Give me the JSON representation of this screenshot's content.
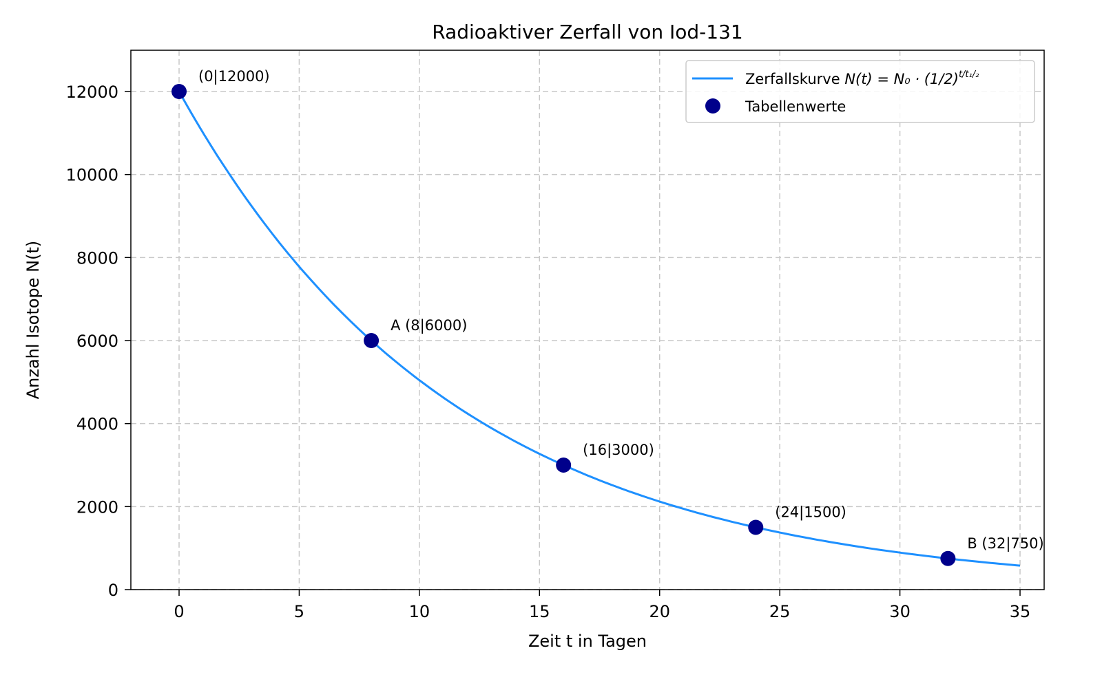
{
  "chart_data": {
    "type": "line",
    "title": "Radioaktiver Zerfall von Iod-131",
    "xlabel": "Zeit t in Tagen",
    "ylabel": "Anzahl Isotope N(t)",
    "xlim": [
      -2,
      36.5
    ],
    "ylim": [
      0,
      13000
    ],
    "xticks": [
      0,
      5,
      10,
      15,
      20,
      25,
      30,
      35
    ],
    "yticks": [
      0,
      2000,
      4000,
      6000,
      8000,
      10000,
      12000
    ],
    "grid": true,
    "legend_position": "upper right",
    "series": [
      {
        "name": "Zerfallskurve N(t) = N0 · (1/2)^(t/t1/2)",
        "type": "line",
        "color": "#1e90ff",
        "N0": 12000,
        "half_life": 8,
        "x_range": [
          0,
          35
        ]
      },
      {
        "name": "Tabellenwerte",
        "type": "scatter",
        "color": "#00008b",
        "x": [
          0,
          8,
          16,
          24,
          32
        ],
        "y": [
          12000,
          6000,
          3000,
          1500,
          750
        ]
      }
    ],
    "annotations": [
      {
        "text": "(0|12000)",
        "x": 0,
        "y": 12000,
        "color": "#000000"
      },
      {
        "text": "A (8|6000)",
        "x": 8,
        "y": 6000,
        "color": "#ff0000"
      },
      {
        "text": "(16|3000)",
        "x": 16,
        "y": 3000,
        "color": "#000000"
      },
      {
        "text": "(24|1500)",
        "x": 24,
        "y": 1500,
        "color": "#000000"
      },
      {
        "text": "B (32|750)",
        "x": 32,
        "y": 750,
        "color": "#ff0000"
      }
    ]
  },
  "legend": {
    "curve_label": "Zerfallskurve",
    "curve_formula": "N(t) = N₀ · (1/2)",
    "curve_exponent": "t/t₁/₂",
    "points_label": "Tabellenwerte"
  }
}
